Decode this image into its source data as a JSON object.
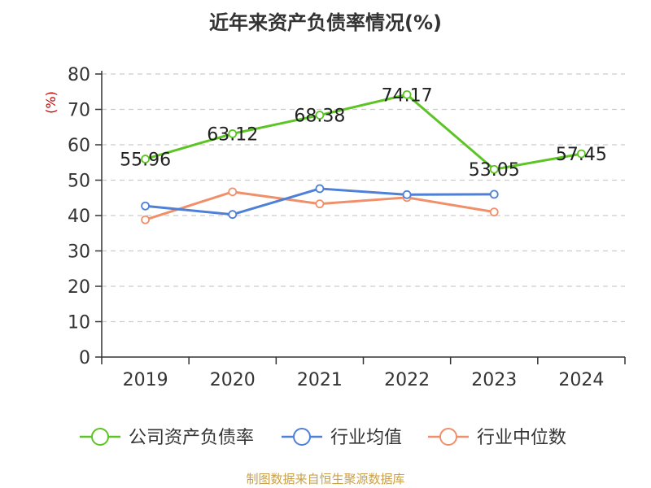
{
  "chart_data": {
    "type": "line",
    "title": "近年来资产负债率情况(%)",
    "ylabel": "(%)",
    "categories": [
      "2019",
      "2020",
      "2021",
      "2022",
      "2023",
      "2024"
    ],
    "ylim": [
      0,
      80
    ],
    "yticks": [
      0,
      10,
      20,
      30,
      40,
      50,
      60,
      70,
      80
    ],
    "grid": true,
    "legend_position": "bottom",
    "series": [
      {
        "name": "公司资产负债率",
        "color": "#5cc424",
        "values": [
          55.96,
          63.12,
          68.38,
          74.17,
          53.05,
          57.45
        ],
        "labels": [
          "55.96",
          "63.12",
          "68.38",
          "74.17",
          "53.05",
          "57.45"
        ]
      },
      {
        "name": "行业均值",
        "color": "#4e80d8",
        "values": [
          42.7,
          40.3,
          47.6,
          45.9,
          46.0,
          null
        ]
      },
      {
        "name": "行业中位数",
        "color": "#f0906a",
        "values": [
          38.8,
          46.7,
          43.3,
          45.1,
          41.0,
          null
        ]
      }
    ]
  },
  "source": "制图数据来自恒生聚源数据库",
  "colors": {
    "axis": "#333333",
    "grid": "#cccccc",
    "unit_label": "#cc0000"
  }
}
